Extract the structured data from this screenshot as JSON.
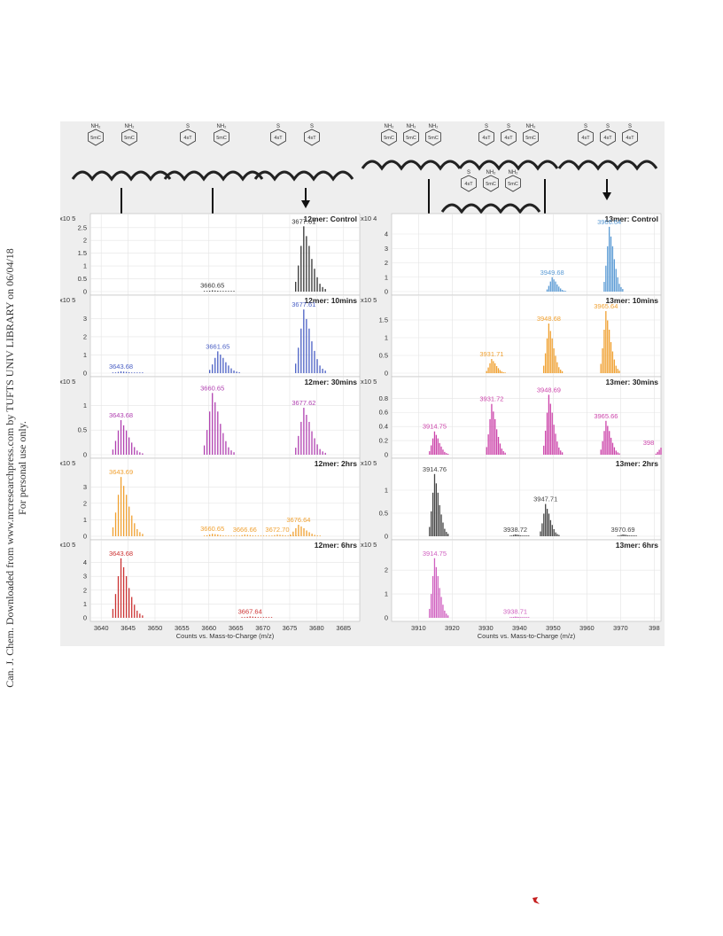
{
  "margin_note": {
    "line1": "Can. J. Chem. Downloaded from www.nrcresearchpress.com by TUFTS UNIV LIBRARY on 06/04/18",
    "line2": "For personal use only."
  },
  "structures": {
    "left": [
      {
        "bases": [
          "5mC",
          "5mC"
        ],
        "top": [
          "NH₂",
          "NH₂"
        ]
      },
      {
        "bases": [
          "4sT",
          "5mC"
        ],
        "top": [
          "S",
          "NH₂"
        ]
      },
      {
        "bases": [
          "4sT",
          "4sT"
        ],
        "top": [
          "S",
          "S"
        ]
      }
    ],
    "right": [
      {
        "bases": [
          "5mC",
          "5mC",
          "5mC"
        ],
        "top": [
          "NH₂",
          "NH₂",
          "NH₂"
        ]
      },
      {
        "bases": [
          "4sT",
          "4sT",
          "5mC"
        ],
        "top": [
          "S",
          "S",
          "NH₂"
        ]
      },
      {
        "bases": [
          "4sT",
          "4sT",
          "4sT"
        ],
        "top": [
          "S",
          "S",
          "S"
        ]
      },
      {
        "bases": [
          "4sT",
          "5mC",
          "5mC"
        ],
        "top": [
          "S",
          "NH₂",
          "NH₂"
        ]
      }
    ]
  },
  "colors": {
    "control": "#333333",
    "blue": "#4a5fc4",
    "lightblue": "#5b9bd5",
    "orange": "#f0a030",
    "purple": "#b040b0",
    "magenta": "#cc44aa",
    "red": "#cc3333",
    "pink": "#d060c0",
    "gray": "#444444"
  },
  "chart_data": [
    {
      "type": "bar",
      "xlabel": "Counts vs. Mass-to-Charge (m/z)",
      "x_ticks": [
        3640,
        3645,
        3650,
        3655,
        3660,
        3665,
        3670,
        3675,
        3680,
        3685
      ],
      "xlim": [
        3638,
        3688
      ],
      "panels": [
        {
          "title": "12mer: Control",
          "color": "control",
          "exponent": "x10 5",
          "yticks": [
            "0",
            "0.5",
            "1",
            "1.5",
            "2",
            "2.5"
          ],
          "ymax": 2.7,
          "peaks": [
            {
              "x": 3677.61,
              "y": 2.55,
              "label": "3677.61"
            },
            {
              "x": 3660.65,
              "y": 0.05,
              "label": "3660.65"
            }
          ]
        },
        {
          "title": "12mer: 10mins",
          "color": "blue",
          "exponent": "x10 5",
          "yticks": [
            "0",
            "1",
            "2",
            "3"
          ],
          "ymax": 3.8,
          "peaks": [
            {
              "x": 3643.68,
              "y": 0.1,
              "label": "3643.68"
            },
            {
              "x": 3661.65,
              "y": 1.2,
              "label": "3661.65"
            },
            {
              "x": 3677.61,
              "y": 3.5,
              "label": "3677.61"
            }
          ]
        },
        {
          "title": "12mer: 30mins",
          "color": "purple",
          "exponent": "x10 5",
          "yticks": [
            "0",
            "0.5",
            "1"
          ],
          "ymax": 1.4,
          "peaks": [
            {
              "x": 3643.68,
              "y": 0.7,
              "label": "3643.68"
            },
            {
              "x": 3660.65,
              "y": 1.25,
              "label": "3660.65"
            },
            {
              "x": 3677.62,
              "y": 0.95,
              "label": "3677.62"
            }
          ]
        },
        {
          "title": "12mer: 2hrs",
          "color": "orange",
          "exponent": "x10 5",
          "yticks": [
            "0",
            "1",
            "2",
            "3"
          ],
          "ymax": 4.2,
          "peaks": [
            {
              "x": 3643.69,
              "y": 3.6,
              "label": "3643.69"
            },
            {
              "x": 3660.65,
              "y": 0.15,
              "label": "3660.65"
            },
            {
              "x": 3666.66,
              "y": 0.1,
              "label": "3666.66"
            },
            {
              "x": 3672.7,
              "y": 0.1,
              "label": "3672.70"
            },
            {
              "x": 3676.64,
              "y": 0.7,
              "label": "3676.64"
            }
          ]
        },
        {
          "title": "12mer: 6hrs",
          "color": "red",
          "exponent": "x10 5",
          "yticks": [
            "0",
            "1",
            "2",
            "3",
            "4"
          ],
          "ymax": 5,
          "peaks": [
            {
              "x": 3643.68,
              "y": 4.3,
              "label": "3643.68"
            },
            {
              "x": 3667.64,
              "y": 0.1,
              "label": "3667.64"
            }
          ]
        }
      ]
    },
    {
      "type": "bar",
      "xlabel": "Counts vs. Mass-to-Charge (m/z)",
      "x_ticks": [
        3910,
        3920,
        3930,
        3940,
        3950,
        3960,
        3970,
        "398"
      ],
      "xlim": [
        3902,
        3982
      ],
      "panels": [
        {
          "title": "13mer: Control",
          "color": "lightblue",
          "exponent": "x10 4",
          "yticks": [
            "0",
            "1",
            "2",
            "3",
            "4"
          ],
          "ymax": 4.8,
          "peaks": [
            {
              "x": 3949.68,
              "y": 1.0,
              "label": "3949.68"
            },
            {
              "x": 3966.64,
              "y": 4.5,
              "label": "3966.64"
            }
          ]
        },
        {
          "title": "13mer: 10mins",
          "color": "orange",
          "exponent": "x10 5",
          "yticks": [
            "0",
            "0.5",
            "1",
            "1.5"
          ],
          "ymax": 1.95,
          "peaks": [
            {
              "x": 3931.71,
              "y": 0.4,
              "label": "3931.71"
            },
            {
              "x": 3948.68,
              "y": 1.4,
              "label": "3948.68"
            },
            {
              "x": 3965.64,
              "y": 1.75,
              "label": "3965.64"
            }
          ]
        },
        {
          "title": "13mer: 30mins",
          "color": "magenta",
          "exponent": "x10 5",
          "yticks": [
            "0",
            "0.2",
            "0.4",
            "0.6",
            "0.8"
          ],
          "ymax": 0.98,
          "peaks": [
            {
              "x": 3914.75,
              "y": 0.33,
              "label": "3914.75"
            },
            {
              "x": 3931.72,
              "y": 0.72,
              "label": "3931.72"
            },
            {
              "x": 3948.69,
              "y": 0.85,
              "label": "3948.69"
            },
            {
              "x": 3965.66,
              "y": 0.48,
              "label": "3965.66"
            },
            {
              "x": 3982,
              "y": 0.1,
              "label": "398"
            }
          ]
        },
        {
          "title": "13mer: 2hrs",
          "color": "gray",
          "exponent": "x10 5",
          "yticks": [
            "0",
            "0.5",
            "1"
          ],
          "ymax": 1.5,
          "peaks": [
            {
              "x": 3914.76,
              "y": 1.35,
              "label": "3914.76"
            },
            {
              "x": 3938.72,
              "y": 0.04,
              "label": "3938.72"
            },
            {
              "x": 3947.71,
              "y": 0.7,
              "label": "3947.71"
            },
            {
              "x": 3970.69,
              "y": 0.04,
              "label": "3970.69"
            }
          ]
        },
        {
          "title": "13mer: 6hrs",
          "color": "pink",
          "exponent": "x10 5",
          "yticks": [
            "0",
            "1",
            "2"
          ],
          "ymax": 2.9,
          "peaks": [
            {
              "x": 3914.75,
              "y": 2.5,
              "label": "3914.75"
            },
            {
              "x": 3938.71,
              "y": 0.05,
              "label": "3938.71"
            }
          ]
        }
      ]
    }
  ]
}
